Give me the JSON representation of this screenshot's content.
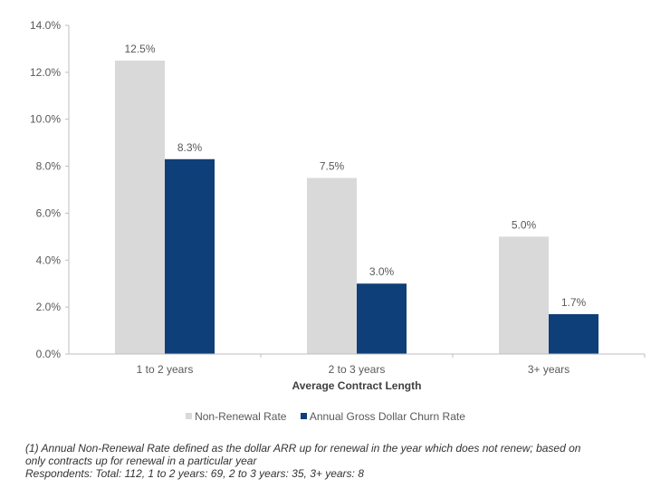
{
  "chart_data": {
    "type": "bar",
    "categories": [
      "1 to 2 years",
      "2 to 3 years",
      "3+ years"
    ],
    "series": [
      {
        "name": "Non-Renewal Rate",
        "values": [
          12.5,
          7.5,
          5.0
        ],
        "labels": [
          "12.5%",
          "7.5%",
          "5.0%"
        ],
        "color": "#d9d9d9"
      },
      {
        "name": "Annual Gross Dollar Churn Rate",
        "values": [
          8.3,
          3.0,
          1.7
        ],
        "labels": [
          "8.3%",
          "3.0%",
          "1.7%"
        ],
        "color": "#0f3f78"
      }
    ],
    "ylim": [
      0,
      14
    ],
    "yticks": [
      0,
      2,
      4,
      6,
      8,
      10,
      12,
      14
    ],
    "ytick_labels": [
      "0.0%",
      "2.0%",
      "4.0%",
      "6.0%",
      "8.0%",
      "10.0%",
      "12.0%",
      "14.0%"
    ],
    "xlabel": "Average Contract Length",
    "ylabel": "",
    "title": "",
    "grid": false,
    "legend_position": "bottom"
  },
  "footnote": {
    "line1": "(1) Annual Non-Renewal Rate defined as the dollar ARR up for renewal in the year which does not renew; based on",
    "line2": "only contracts up for renewal in a particular year",
    "line3": "Respondents: Total: 112, 1 to 2 years: 69, 2 to 3 years: 35, 3+ years: 8"
  }
}
